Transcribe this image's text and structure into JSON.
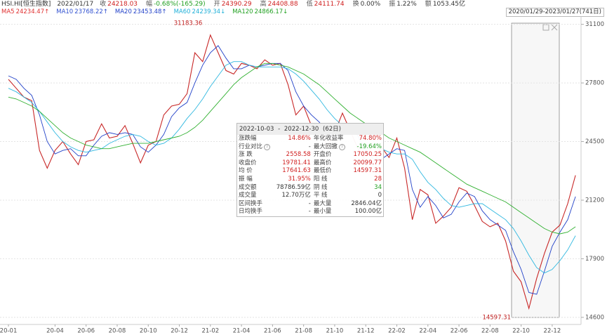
{
  "header": {
    "symbol": "HSI.HI[恒生指数]",
    "date": "2022/01/17",
    "quote": [
      {
        "label": "收",
        "value": "24218.03",
        "color": "#d02020"
      },
      {
        "label": "幅",
        "value": "-0.68%(-165.29)",
        "color": "#20a020"
      },
      {
        "label": "开",
        "value": "24390.29",
        "color": "#d02020"
      },
      {
        "label": "高",
        "value": "24408.88",
        "color": "#d02020"
      },
      {
        "label": "低",
        "value": "24111.74",
        "color": "#d02020"
      },
      {
        "label": "换",
        "value": "0.00%",
        "color": "#333"
      },
      {
        "label": "振",
        "value": "1.22%",
        "color": "#333"
      },
      {
        "label": "额",
        "value": "1053.45亿",
        "color": "#333"
      }
    ],
    "ma": [
      {
        "name": "MA5",
        "value": "24234.47↑",
        "color": "#e03030"
      },
      {
        "name": "MA10",
        "value": "23768.22↑",
        "color": "#3050d0"
      },
      {
        "name": "MA20",
        "value": "23453.48↑",
        "color": "#2040c8"
      },
      {
        "name": "MA60",
        "value": "24239.34↓",
        "color": "#20b0d8"
      },
      {
        "name": "MA120",
        "value": "24866.17↓",
        "color": "#20a020"
      }
    ],
    "range": "2020/01/29-2023/01/27(741日)"
  },
  "chart_data": {
    "type": "line",
    "categories": [
      "20-01",
      null,
      null,
      null,
      null,
      null,
      "20-04",
      null,
      null,
      null,
      "20-06",
      null,
      null,
      null,
      "20-08",
      null,
      null,
      null,
      "20-10",
      null,
      null,
      null,
      "20-12",
      null,
      null,
      null,
      "21-02",
      null,
      null,
      null,
      "21-04",
      null,
      null,
      null,
      "21-06",
      null,
      null,
      null,
      "21-08",
      null,
      null,
      null,
      "21-10",
      null,
      null,
      null,
      "21-12",
      null,
      null,
      null,
      "22-02",
      null,
      null,
      null,
      "22-04",
      null,
      null,
      null,
      "22-06",
      null,
      null,
      null,
      "22-08",
      null,
      null,
      null,
      "22-10",
      null,
      null,
      null,
      "22-12",
      null,
      null,
      null
    ],
    "series": [
      {
        "color": "#c82828",
        "values": [
          28000,
          27500,
          27000,
          26800,
          24000,
          23000,
          24000,
          24500,
          23800,
          23200,
          24500,
          24600,
          25500,
          24700,
          24800,
          25400,
          24400,
          23300,
          24300,
          24500,
          26000,
          26500,
          26600,
          27200,
          29500,
          29000,
          30500,
          29500,
          28500,
          28300,
          28900,
          28800,
          28600,
          29100,
          28800,
          28900,
          27700,
          26000,
          26500,
          25400,
          25500,
          24200,
          25000,
          26100,
          25100,
          24100,
          23400,
          23200,
          24200,
          23600,
          24700,
          23000,
          20100,
          21800,
          21500,
          19900,
          20300,
          20800,
          21900,
          21700,
          20900,
          20000,
          19700,
          19900,
          18900,
          17200,
          16600,
          15100,
          16800,
          18200,
          19400,
          19800,
          21000,
          22600
        ]
      },
      {
        "color": "#2040c8",
        "values": [
          28200,
          28000,
          27500,
          27100,
          26000,
          24500,
          23800,
          24000,
          24100,
          23700,
          23700,
          24300,
          24800,
          25000,
          24900,
          25000,
          24900,
          24200,
          23900,
          24300,
          24900,
          25900,
          26400,
          26700,
          27800,
          28800,
          29500,
          29900,
          29200,
          28600,
          28600,
          28800,
          28700,
          28800,
          28900,
          28900,
          28500,
          27300,
          26500,
          26000,
          25600,
          25000,
          24700,
          25300,
          25500,
          24800,
          24000,
          23500,
          23500,
          23800,
          24100,
          24000,
          21800,
          20800,
          21400,
          20900,
          20200,
          20400,
          21100,
          21600,
          21400,
          20600,
          20100,
          19800,
          19500,
          18300,
          17300,
          16000,
          15900,
          17200,
          18600,
          19400,
          20100,
          21400
        ]
      },
      {
        "color": "#30b8e0",
        "values": [
          27500,
          27300,
          27000,
          26700,
          26200,
          25600,
          25000,
          24500,
          24200,
          24000,
          23900,
          24000,
          24100,
          24400,
          24600,
          24800,
          24900,
          24800,
          24500,
          24300,
          24400,
          24700,
          25200,
          25800,
          26300,
          26900,
          27600,
          28200,
          28800,
          29000,
          29000,
          28800,
          28700,
          28700,
          28700,
          28700,
          28600,
          28300,
          27900,
          27400,
          26900,
          26300,
          25800,
          25400,
          25200,
          25100,
          24900,
          24500,
          24100,
          23900,
          23800,
          23800,
          23500,
          22800,
          22200,
          21800,
          21300,
          20900,
          20800,
          20900,
          21000,
          21000,
          20700,
          20400,
          20100,
          19600,
          18900,
          18100,
          17400,
          17100,
          17300,
          17800,
          18400,
          19200
        ]
      },
      {
        "color": "#30b030",
        "values": [
          27000,
          26900,
          26700,
          26500,
          26200,
          25800,
          25400,
          25000,
          24700,
          24500,
          24300,
          24200,
          24100,
          24100,
          24200,
          24300,
          24400,
          24400,
          24400,
          24500,
          24600,
          24700,
          24800,
          25000,
          25300,
          25700,
          26200,
          26700,
          27200,
          27700,
          28100,
          28400,
          28700,
          28900,
          28900,
          28800,
          28700,
          28500,
          28300,
          28000,
          27700,
          27300,
          26900,
          26500,
          26100,
          25800,
          25500,
          25200,
          25000,
          24700,
          24500,
          24300,
          24100,
          23900,
          23600,
          23300,
          23000,
          22700,
          22400,
          22100,
          21900,
          21700,
          21500,
          21300,
          21100,
          20800,
          20500,
          20200,
          19900,
          19600,
          19400,
          19300,
          19400,
          19700
        ]
      }
    ],
    "ylim": [
      14200,
      31600
    ],
    "yticks": [
      14600,
      17900,
      21200,
      24500,
      27800,
      31100
    ],
    "grid": true,
    "annotations": [
      "31183.36",
      "14597.31"
    ]
  },
  "popup": {
    "start": "2022-10-03",
    "sep": "-",
    "end": "2022-12-30",
    "days": "(62日)",
    "rows": [
      [
        {
          "label": "涨跌幅",
          "value": "14.86%",
          "color": "#d02020"
        },
        {
          "label": "年化收益率",
          "value": "74.80%",
          "color": "#d02020"
        }
      ],
      [
        {
          "label": "行业对比",
          "value": "-",
          "color": "#333",
          "help": true
        },
        {
          "label": "最大回撤",
          "value": "-19.64%",
          "color": "#20a020",
          "help": true
        }
      ],
      [
        {
          "label": "涨 跌",
          "value": "2558.58",
          "color": "#d02020"
        },
        {
          "label": "开盘价",
          "value": "17050.25",
          "color": "#d02020"
        }
      ],
      [
        {
          "label": "收盘价",
          "value": "19781.41",
          "color": "#d02020"
        },
        {
          "label": "最高价",
          "value": "20099.77",
          "color": "#d02020"
        }
      ],
      [
        {
          "label": "均 价",
          "value": "17641.63",
          "color": "#d02020"
        },
        {
          "label": "最低价",
          "value": "14597.31",
          "color": "#d02020"
        }
      ],
      [
        {
          "label": "振 幅",
          "value": "31.95%",
          "color": "#d02020"
        },
        {
          "label": "阳 线",
          "value": "28",
          "color": "#d02020"
        }
      ],
      [
        {
          "label": "成交额",
          "value": "78786.59亿",
          "color": "#333"
        },
        {
          "label": "阴 线",
          "value": "34",
          "color": "#20a020"
        }
      ],
      [
        {
          "label": "成交量",
          "value": "12.70万亿",
          "color": "#333"
        },
        {
          "label": "平 线",
          "value": "0",
          "color": "#333"
        }
      ],
      [
        {
          "label": "区间换手",
          "value": "-",
          "color": "#333"
        },
        {
          "label": "最大量",
          "value": "2846.04亿",
          "color": "#333"
        }
      ],
      [
        {
          "label": "日均换手",
          "value": "-",
          "color": "#333"
        },
        {
          "label": "最小量",
          "value": "100.00亿",
          "color": "#333"
        }
      ]
    ]
  }
}
